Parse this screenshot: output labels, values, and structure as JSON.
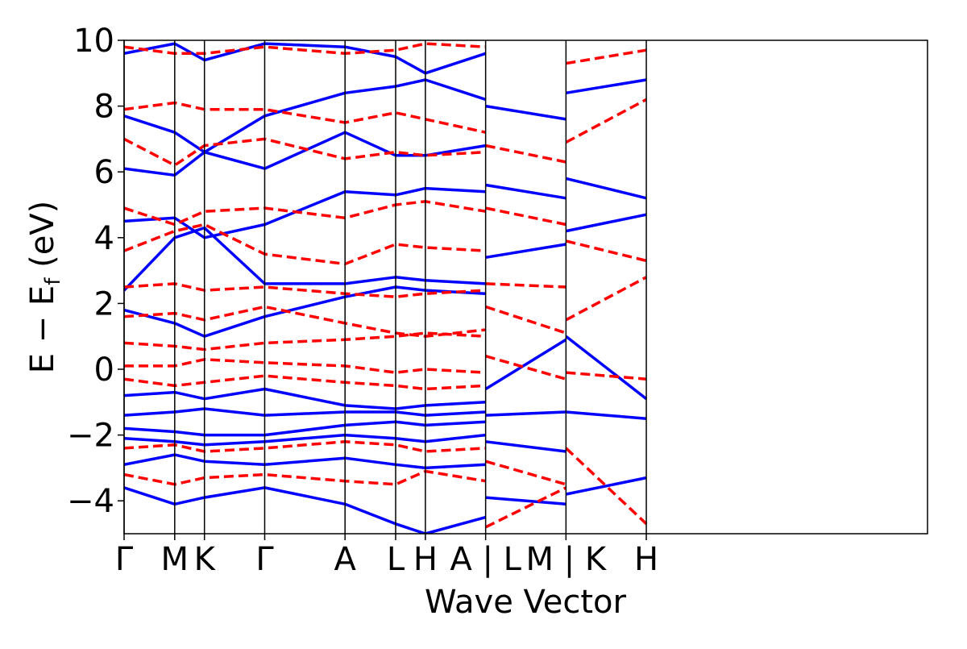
{
  "chart_data": {
    "type": "line",
    "title": "",
    "xlabel": "Wave Vector",
    "ylabel_parts": {
      "main": "E − E",
      "subscript": "f",
      "unit": " (eV)"
    },
    "ylim": [
      -5,
      10
    ],
    "yticks": [
      {
        "value": -4,
        "label": "−4"
      },
      {
        "value": -2,
        "label": "−2"
      },
      {
        "value": 0,
        "label": "0"
      },
      {
        "value": 2,
        "label": "2"
      },
      {
        "value": 4,
        "label": "4"
      },
      {
        "value": 6,
        "label": "6"
      },
      {
        "value": 8,
        "label": "8"
      },
      {
        "value": 10,
        "label": "10"
      }
    ],
    "xlim": [
      0,
      10
    ],
    "kpoints": [
      {
        "x": 0.0,
        "label": "Γ"
      },
      {
        "x": 0.63,
        "label": "M"
      },
      {
        "x": 1.0,
        "label": "K"
      },
      {
        "x": 1.75,
        "label": "Γ"
      },
      {
        "x": 2.75,
        "label": "A"
      },
      {
        "x": 3.38,
        "label": "L"
      },
      {
        "x": 3.75,
        "label": "H"
      },
      {
        "x": 4.5,
        "label": "A | L"
      },
      {
        "x": 5.5,
        "label": "M | K"
      },
      {
        "x": 6.5,
        "label": "H"
      }
    ],
    "segment_breaks": [
      4.5,
      5.5
    ],
    "grid": false,
    "legend": "none",
    "series": [
      {
        "style": "solid",
        "color": "#0000ff",
        "bands": [
          [
            [
              0,
              -3.6
            ],
            [
              0.63,
              -4.1
            ],
            [
              1.0,
              -3.9
            ],
            [
              1.75,
              -3.6
            ],
            [
              2.75,
              -4.1
            ],
            [
              3.38,
              -4.7
            ],
            [
              3.75,
              -5.0
            ],
            [
              4.5,
              -4.5
            ]
          ],
          [
            [
              0,
              -2.9
            ],
            [
              0.63,
              -2.6
            ],
            [
              1.0,
              -2.8
            ],
            [
              1.75,
              -2.9
            ],
            [
              2.75,
              -2.7
            ],
            [
              3.38,
              -2.9
            ],
            [
              3.75,
              -3.0
            ],
            [
              4.5,
              -2.9
            ]
          ],
          [
            [
              0,
              -2.1
            ],
            [
              0.63,
              -2.2
            ],
            [
              1.0,
              -2.3
            ],
            [
              1.75,
              -2.2
            ],
            [
              2.75,
              -2.0
            ],
            [
              3.38,
              -2.1
            ],
            [
              3.75,
              -2.2
            ],
            [
              4.5,
              -2.0
            ]
          ],
          [
            [
              0,
              -1.8
            ],
            [
              0.63,
              -1.9
            ],
            [
              1.0,
              -2.0
            ],
            [
              1.75,
              -2.0
            ],
            [
              2.75,
              -1.7
            ],
            [
              3.38,
              -1.6
            ],
            [
              3.75,
              -1.7
            ],
            [
              4.5,
              -1.6
            ]
          ],
          [
            [
              0,
              -1.4
            ],
            [
              0.63,
              -1.3
            ],
            [
              1.0,
              -1.2
            ],
            [
              1.75,
              -1.4
            ],
            [
              2.75,
              -1.3
            ],
            [
              3.38,
              -1.3
            ],
            [
              3.75,
              -1.4
            ],
            [
              4.5,
              -1.3
            ]
          ],
          [
            [
              0,
              -0.8
            ],
            [
              0.63,
              -0.7
            ],
            [
              1.0,
              -0.9
            ],
            [
              1.75,
              -0.6
            ],
            [
              2.75,
              -1.1
            ],
            [
              3.38,
              -1.2
            ],
            [
              3.75,
              -1.1
            ],
            [
              4.5,
              -1.0
            ]
          ],
          [
            [
              0,
              1.8
            ],
            [
              0.63,
              1.4
            ],
            [
              1.0,
              1.0
            ],
            [
              1.75,
              1.6
            ],
            [
              2.75,
              2.2
            ],
            [
              3.38,
              2.5
            ],
            [
              3.75,
              2.4
            ],
            [
              4.5,
              2.3
            ]
          ],
          [
            [
              0,
              2.4
            ],
            [
              0.63,
              4.0
            ],
            [
              1.0,
              4.3
            ],
            [
              1.75,
              2.6
            ],
            [
              2.75,
              2.6
            ],
            [
              3.38,
              2.8
            ],
            [
              3.75,
              2.7
            ],
            [
              4.5,
              2.6
            ]
          ],
          [
            [
              0,
              4.5
            ],
            [
              0.63,
              4.6
            ],
            [
              1.0,
              4.0
            ],
            [
              1.75,
              4.4
            ],
            [
              2.75,
              5.4
            ],
            [
              3.38,
              5.3
            ],
            [
              3.75,
              5.5
            ],
            [
              4.5,
              5.4
            ]
          ],
          [
            [
              0,
              6.1
            ],
            [
              0.63,
              5.9
            ],
            [
              1.0,
              6.6
            ],
            [
              1.75,
              6.1
            ],
            [
              2.75,
              7.2
            ],
            [
              3.38,
              6.5
            ],
            [
              3.75,
              6.5
            ],
            [
              4.5,
              6.8
            ]
          ],
          [
            [
              0,
              7.7
            ],
            [
              0.63,
              7.2
            ],
            [
              1.0,
              6.6
            ],
            [
              1.75,
              7.7
            ],
            [
              2.75,
              8.4
            ],
            [
              3.38,
              8.6
            ],
            [
              3.75,
              8.8
            ],
            [
              4.5,
              8.2
            ]
          ],
          [
            [
              0,
              9.6
            ],
            [
              0.63,
              9.9
            ],
            [
              1.0,
              9.4
            ],
            [
              1.75,
              9.9
            ],
            [
              2.75,
              9.8
            ],
            [
              3.38,
              9.5
            ],
            [
              3.75,
              9.0
            ],
            [
              4.5,
              9.6
            ]
          ],
          [
            [
              4.5,
              -3.9
            ],
            [
              5.5,
              -4.1
            ]
          ],
          [
            [
              4.5,
              -2.2
            ],
            [
              5.5,
              -2.5
            ]
          ],
          [
            [
              4.5,
              -1.4
            ],
            [
              5.5,
              -1.3
            ]
          ],
          [
            [
              4.5,
              -0.6
            ],
            [
              5.5,
              0.9
            ]
          ],
          [
            [
              4.5,
              3.4
            ],
            [
              5.5,
              3.8
            ]
          ],
          [
            [
              4.5,
              5.6
            ],
            [
              5.5,
              5.2
            ]
          ],
          [
            [
              4.5,
              8.0
            ],
            [
              5.5,
              7.6
            ]
          ],
          [
            [
              5.5,
              -3.8
            ],
            [
              6.5,
              -3.3
            ]
          ],
          [
            [
              5.5,
              -1.3
            ],
            [
              6.5,
              -1.5
            ]
          ],
          [
            [
              5.5,
              1.0
            ],
            [
              6.5,
              -0.9
            ]
          ],
          [
            [
              5.5,
              4.2
            ],
            [
              6.5,
              4.7
            ]
          ],
          [
            [
              5.5,
              5.8
            ],
            [
              6.5,
              5.2
            ]
          ],
          [
            [
              5.5,
              8.4
            ],
            [
              6.5,
              8.8
            ]
          ]
        ]
      },
      {
        "style": "dashed",
        "color": "#ff0000",
        "bands": [
          [
            [
              0,
              -3.2
            ],
            [
              0.63,
              -3.5
            ],
            [
              1.0,
              -3.3
            ],
            [
              1.75,
              -3.2
            ],
            [
              2.75,
              -3.4
            ],
            [
              3.38,
              -3.5
            ],
            [
              3.75,
              -3.1
            ],
            [
              4.5,
              -3.4
            ]
          ],
          [
            [
              0,
              -2.4
            ],
            [
              0.63,
              -2.3
            ],
            [
              1.0,
              -2.5
            ],
            [
              1.75,
              -2.4
            ],
            [
              2.75,
              -2.2
            ],
            [
              3.38,
              -2.3
            ],
            [
              3.75,
              -2.5
            ],
            [
              4.5,
              -2.4
            ]
          ],
          [
            [
              0,
              -0.3
            ],
            [
              0.63,
              -0.5
            ],
            [
              1.0,
              -0.4
            ],
            [
              1.75,
              -0.2
            ],
            [
              2.75,
              -0.4
            ],
            [
              3.38,
              -0.5
            ],
            [
              3.75,
              -0.6
            ],
            [
              4.5,
              -0.5
            ]
          ],
          [
            [
              0,
              0.1
            ],
            [
              0.63,
              0.1
            ],
            [
              1.0,
              0.3
            ],
            [
              1.75,
              0.2
            ],
            [
              2.75,
              0.1
            ],
            [
              3.38,
              -0.1
            ],
            [
              3.75,
              0.0
            ],
            [
              4.5,
              -0.1
            ]
          ],
          [
            [
              0,
              0.8
            ],
            [
              0.63,
              0.7
            ],
            [
              1.0,
              0.6
            ],
            [
              1.75,
              0.8
            ],
            [
              2.75,
              0.9
            ],
            [
              3.38,
              1.0
            ],
            [
              3.75,
              1.1
            ],
            [
              4.5,
              1.0
            ]
          ],
          [
            [
              0,
              1.6
            ],
            [
              0.63,
              1.7
            ],
            [
              1.0,
              1.5
            ],
            [
              1.75,
              1.9
            ],
            [
              2.75,
              1.4
            ],
            [
              3.38,
              1.1
            ],
            [
              3.75,
              1.0
            ],
            [
              4.5,
              1.2
            ]
          ],
          [
            [
              0,
              2.5
            ],
            [
              0.63,
              2.6
            ],
            [
              1.0,
              2.4
            ],
            [
              1.75,
              2.5
            ],
            [
              2.75,
              2.3
            ],
            [
              3.38,
              2.2
            ],
            [
              3.75,
              2.3
            ],
            [
              4.5,
              2.4
            ]
          ],
          [
            [
              0,
              3.6
            ],
            [
              0.63,
              4.2
            ],
            [
              1.0,
              4.4
            ],
            [
              1.75,
              3.5
            ],
            [
              2.75,
              3.2
            ],
            [
              3.38,
              3.8
            ],
            [
              3.75,
              3.7
            ],
            [
              4.5,
              3.6
            ]
          ],
          [
            [
              0,
              4.9
            ],
            [
              0.63,
              4.4
            ],
            [
              1.0,
              4.8
            ],
            [
              1.75,
              4.9
            ],
            [
              2.75,
              4.6
            ],
            [
              3.38,
              5.0
            ],
            [
              3.75,
              5.1
            ],
            [
              4.5,
              4.8
            ]
          ],
          [
            [
              0,
              7.0
            ],
            [
              0.63,
              6.2
            ],
            [
              1.0,
              6.8
            ],
            [
              1.75,
              7.0
            ],
            [
              2.75,
              6.4
            ],
            [
              3.38,
              6.6
            ],
            [
              3.75,
              6.5
            ],
            [
              4.5,
              6.6
            ]
          ],
          [
            [
              0,
              7.9
            ],
            [
              0.63,
              8.1
            ],
            [
              1.0,
              7.9
            ],
            [
              1.75,
              7.9
            ],
            [
              2.75,
              7.5
            ],
            [
              3.38,
              7.8
            ],
            [
              3.75,
              7.6
            ],
            [
              4.5,
              7.2
            ]
          ],
          [
            [
              0,
              9.8
            ],
            [
              0.63,
              9.6
            ],
            [
              1.0,
              9.6
            ],
            [
              1.75,
              9.8
            ],
            [
              2.75,
              9.6
            ],
            [
              3.38,
              9.7
            ],
            [
              3.75,
              9.9
            ],
            [
              4.5,
              9.8
            ]
          ],
          [
            [
              4.5,
              -4.8
            ],
            [
              5.5,
              -3.6
            ]
          ],
          [
            [
              4.5,
              -2.8
            ],
            [
              5.5,
              -3.5
            ]
          ],
          [
            [
              4.5,
              0.4
            ],
            [
              5.5,
              -0.3
            ]
          ],
          [
            [
              4.5,
              1.9
            ],
            [
              5.5,
              1.1
            ]
          ],
          [
            [
              4.5,
              2.6
            ],
            [
              5.5,
              2.5
            ]
          ],
          [
            [
              4.5,
              4.9
            ],
            [
              5.5,
              4.4
            ]
          ],
          [
            [
              4.5,
              6.8
            ],
            [
              5.5,
              6.3
            ]
          ],
          [
            [
              5.5,
              -2.4
            ],
            [
              6.5,
              -4.7
            ]
          ],
          [
            [
              5.5,
              -0.1
            ],
            [
              6.5,
              -0.3
            ]
          ],
          [
            [
              5.5,
              1.5
            ],
            [
              6.5,
              2.8
            ]
          ],
          [
            [
              5.5,
              3.9
            ],
            [
              6.5,
              3.3
            ]
          ],
          [
            [
              5.5,
              6.9
            ],
            [
              6.5,
              8.2
            ]
          ],
          [
            [
              5.5,
              9.3
            ],
            [
              6.5,
              9.7
            ]
          ]
        ]
      }
    ]
  }
}
